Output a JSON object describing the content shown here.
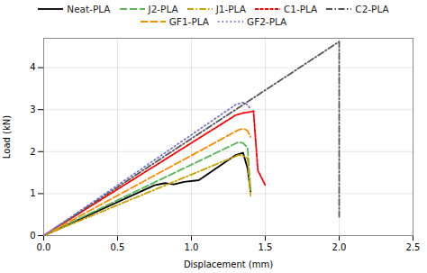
{
  "chart_data": {
    "type": "line",
    "xlabel": "Displacement (mm)",
    "ylabel": "Load (kN)",
    "xlim": [
      0,
      2.5
    ],
    "ylim": [
      0,
      4.7
    ],
    "xticks": [
      {
        "value": 0,
        "label": "0.0"
      },
      {
        "value": 0.5,
        "label": "0.5"
      },
      {
        "value": 1.0,
        "label": "1.0"
      },
      {
        "value": 1.5,
        "label": "1.5"
      },
      {
        "value": 2.0,
        "label": "2.0"
      },
      {
        "value": 2.5,
        "label": "2.5"
      }
    ],
    "yticks": [
      0,
      1,
      2,
      3,
      4
    ],
    "grid": true,
    "legend": "top",
    "series": [
      {
        "name": "Neat-PLA",
        "color": "#000000",
        "line_style": "solid",
        "x": [
          0,
          0.75,
          0.82,
          0.88,
          0.95,
          1.05,
          1.3,
          1.35,
          1.38,
          1.4
        ],
        "values": [
          0,
          1.2,
          1.25,
          1.22,
          1.28,
          1.32,
          1.92,
          1.97,
          1.6,
          1.05
        ]
      },
      {
        "name": "J2-PLA",
        "color": "#5ab55a",
        "line_style": "dashed",
        "x": [
          0,
          1.32,
          1.35,
          1.38,
          1.4
        ],
        "values": [
          0,
          2.23,
          2.2,
          2.1,
          1.1
        ]
      },
      {
        "name": "J1-PLA",
        "color": "#c8a000",
        "line_style": "dashdot",
        "x": [
          0,
          1.32,
          1.35,
          1.38,
          1.4
        ],
        "values": [
          0,
          1.92,
          1.9,
          1.85,
          0.95
        ]
      },
      {
        "name": "C1-PLA",
        "color": "#ff0000",
        "line_style": "densedash",
        "x": [
          0,
          1.3,
          1.35,
          1.4,
          1.42,
          1.45,
          1.5
        ],
        "values": [
          0,
          2.87,
          2.92,
          2.95,
          2.97,
          1.55,
          1.2
        ]
      },
      {
        "name": "C2-PLA",
        "color": "#555555",
        "line_style": "dashdot",
        "x": [
          0,
          2.0,
          2.0
        ],
        "values": [
          0,
          4.62,
          0.45
        ]
      },
      {
        "name": "GF1-PLA",
        "color": "#ff8800",
        "line_style": "dashed",
        "x": [
          0,
          1.32,
          1.35,
          1.38,
          1.4
        ],
        "values": [
          0,
          2.52,
          2.55,
          2.5,
          2.35
        ]
      },
      {
        "name": "GF2-PLA",
        "color": "#7777cc",
        "line_style": "dotted",
        "x": [
          0,
          1.3,
          1.35,
          1.38,
          1.4
        ],
        "values": [
          0,
          3.12,
          3.17,
          3.12,
          3.0
        ]
      }
    ]
  }
}
